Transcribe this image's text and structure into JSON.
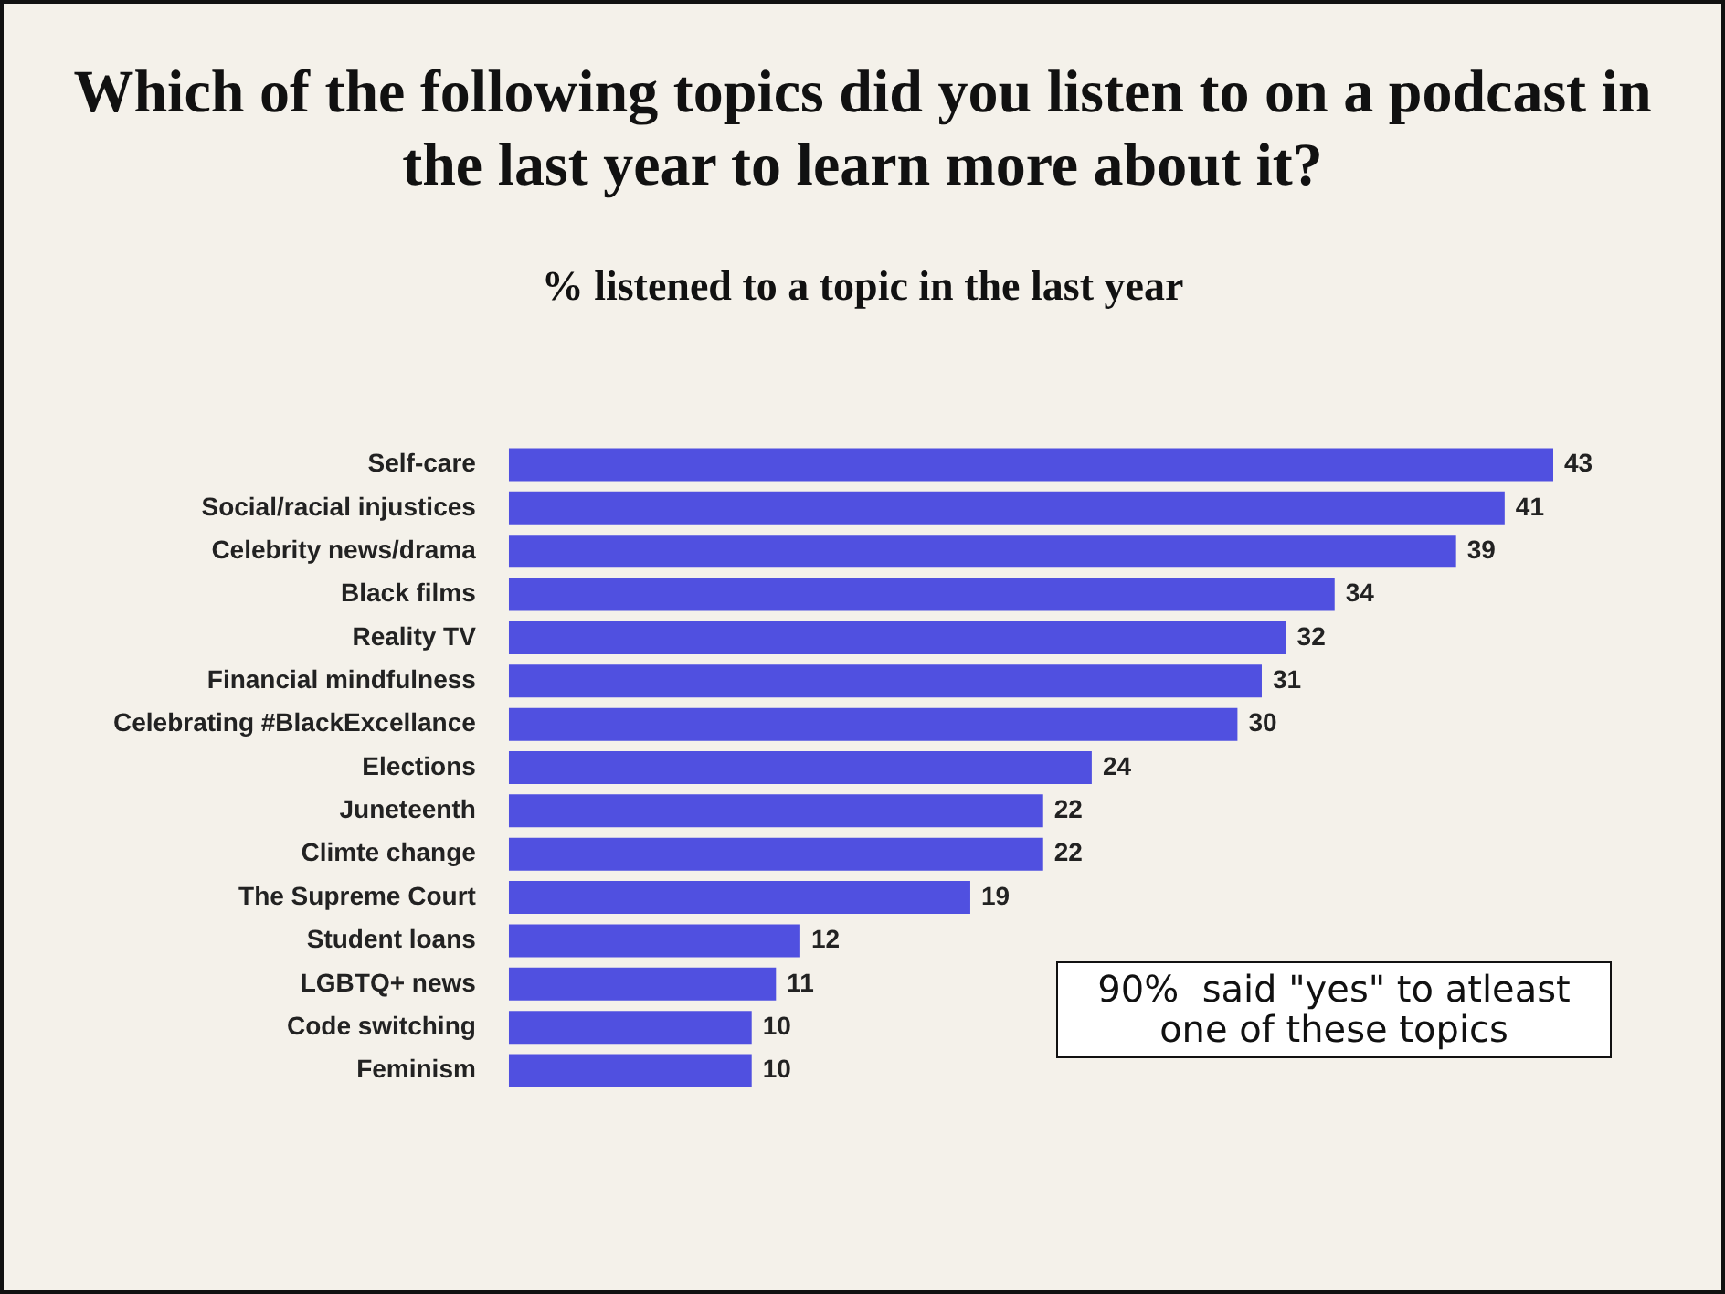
{
  "chart_data": {
    "type": "bar",
    "orientation": "horizontal",
    "title": "Which of the following topics did you listen to on a podcast in the last year to learn more about it?",
    "subtitle": "% listened to a topic in the last year",
    "categories": [
      "Self-care",
      "Social/racial injustices",
      "Celebrity news/drama",
      "Black films",
      "Reality TV",
      "Financial mindfulness",
      "Celebrating #BlackExcellance",
      "Elections",
      "Juneteenth",
      "Climte change",
      "The Supreme Court",
      "Student loans",
      "LGBTQ+ news",
      "Code switching",
      "Feminism"
    ],
    "values": [
      43,
      41,
      39,
      34,
      32,
      31,
      30,
      24,
      22,
      22,
      19,
      12,
      11,
      10,
      10
    ],
    "color": "#5050e0",
    "data_labels": true,
    "legend": false,
    "tick_labels": "y",
    "annotations": [
      "90%  said \"yes\" to atleast one of these topics"
    ]
  }
}
